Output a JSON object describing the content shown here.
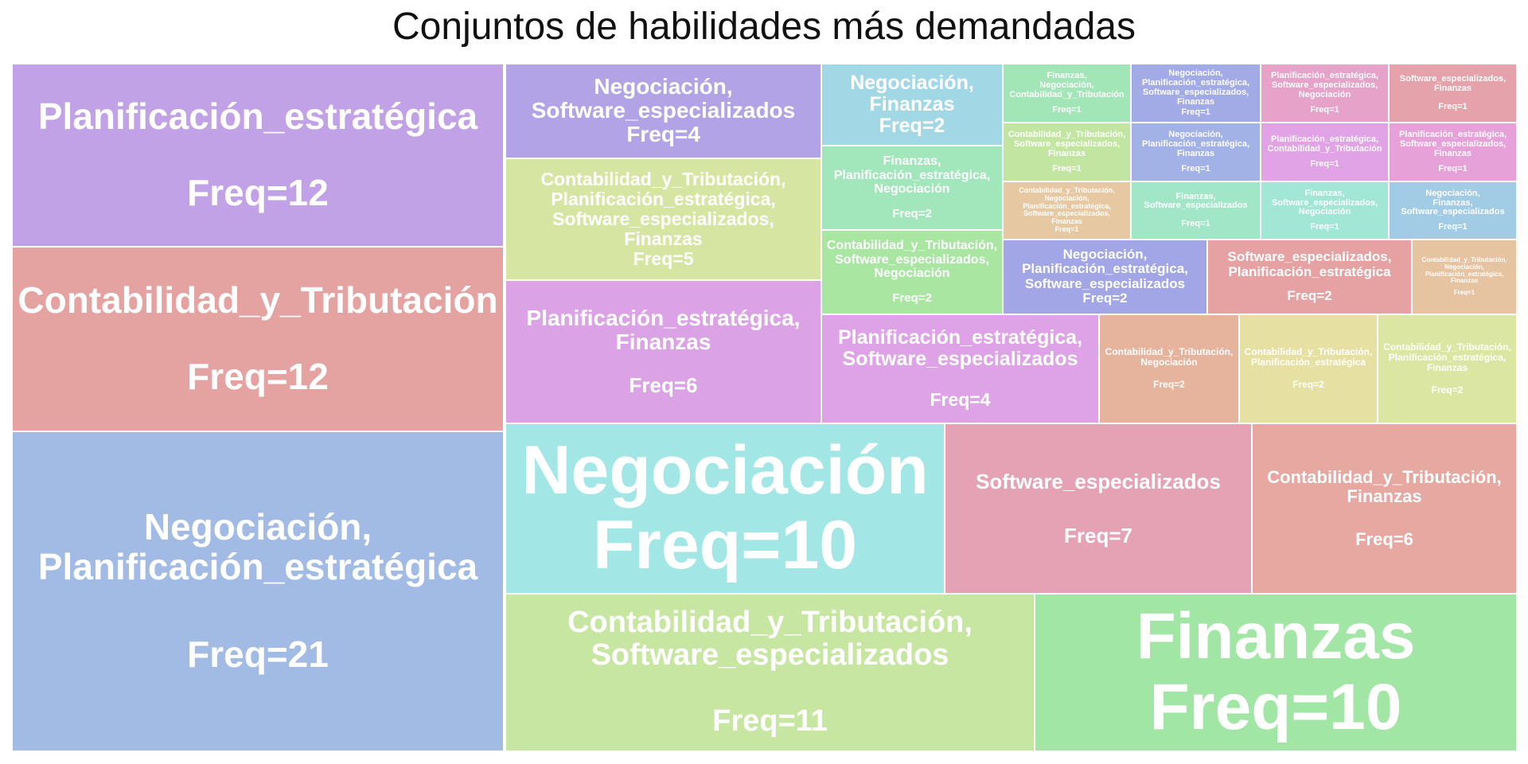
{
  "chart_data": {
    "type": "treemap",
    "title": "Conjuntos de habilidades más demandadas",
    "items": [
      {
        "label": "Negociación, Planificación_estratégica",
        "display": "Negociación,\nPlanificación_estratégica",
        "freq": 21,
        "freq_text": "Freq=21",
        "color": "#a1bbe4"
      },
      {
        "label": "Planificación_estratégica",
        "display": "Planificación_estratégica",
        "freq": 12,
        "freq_text": "Freq=12",
        "color": "#c1a2e6"
      },
      {
        "label": "Contabilidad_y_Tributación",
        "display": "Contabilidad_y_Tributación",
        "freq": 12,
        "freq_text": "Freq=12",
        "color": "#e4a2a0"
      },
      {
        "label": "Contabilidad_y_Tributación, Software_especializados",
        "display": "Contabilidad_y_Tributación,\nSoftware_especializados",
        "freq": 11,
        "freq_text": "Freq=11",
        "color": "#c7e6a2"
      },
      {
        "label": "Negociación",
        "display": "Negociación",
        "freq": 10,
        "freq_text": "Freq=10",
        "color": "#a2e6e6"
      },
      {
        "label": "Finanzas",
        "display": "Finanzas",
        "freq": 10,
        "freq_text": "Freq=10",
        "color": "#a2e6a5"
      },
      {
        "label": "Software_especializados",
        "display": "Software_especializados",
        "freq": 7,
        "freq_text": "Freq=7",
        "color": "#e4a2b4"
      },
      {
        "label": "Contabilidad_y_Tributación, Finanzas",
        "display": "Contabilidad_y_Tributación,\nFinanzas",
        "freq": 6,
        "freq_text": "Freq=6",
        "color": "#e6a8a0"
      },
      {
        "label": "Planificación_estratégica, Finanzas",
        "display": "Planificación_estratégica,\nFinanzas",
        "freq": 6,
        "freq_text": "Freq=6",
        "color": "#dba2e6"
      },
      {
        "label": "Contabilidad_y_Tributación, Planificación_estratégica, Software_especializados, Finanzas",
        "display": "Contabilidad_y_Tributación,\nPlanificación_estratégica,\nSoftware_especializados,\nFinanzas",
        "freq": 5,
        "freq_text": "Freq=5",
        "color": "#d6e6a2"
      },
      {
        "label": "Negociación, Software_especializados",
        "display": "Negociación,\nSoftware_especializados",
        "freq": 4,
        "freq_text": "Freq=4",
        "color": "#b2a2e6"
      },
      {
        "label": "Planificación_estratégica, Software_especializados",
        "display": "Planificación_estratégica,\nSoftware_especializados",
        "freq": 4,
        "freq_text": "Freq=4",
        "color": "#dea2e6"
      },
      {
        "label": "Negociación, Finanzas",
        "display": "Negociación,\nFinanzas",
        "freq": 2,
        "freq_text": "Freq=2",
        "color": "#a2d8e6"
      },
      {
        "label": "Finanzas, Planificación_estratégica, Negociación",
        "display": "Finanzas,\nPlanificación_estratégica,\nNegociación",
        "freq": 2,
        "freq_text": "Freq=2",
        "color": "#a2e6bb"
      },
      {
        "label": "Contabilidad_y_Tributación, Software_especializados, Negociación",
        "display": "Contabilidad_y_Tributación,\nSoftware_especializados,\nNegociación",
        "freq": 2,
        "freq_text": "Freq=2",
        "color": "#a8e6a2"
      },
      {
        "label": "Negociación, Planificación_estratégica, Software_especializados",
        "display": "Negociación,\nPlanificación_estratégica,\nSoftware_especializados",
        "freq": 2,
        "freq_text": "Freq=2",
        "color": "#a2a6e6"
      },
      {
        "label": "Software_especializados, Planificación_estratégica",
        "display": "Software_especializados,\nPlanificación_estratégica",
        "freq": 2,
        "freq_text": "Freq=2",
        "color": "#e6a2a2"
      },
      {
        "label": "Contabilidad_y_Tributación, Negociación",
        "display": "Contabilidad_y_Tributación,\nNegociación",
        "freq": 2,
        "freq_text": "Freq=2",
        "color": "#e6b49c"
      },
      {
        "label": "Contabilidad_y_Tributación, Planificación_estratégica",
        "display": "Contabilidad_y_Tributación,\nPlanificación_estratégica",
        "freq": 2,
        "freq_text": "Freq=2",
        "color": "#e6e0a2"
      },
      {
        "label": "Contabilidad_y_Tributación, Planificación_estratégica, Finanzas",
        "display": "Contabilidad_y_Tributación,\nPlanificación_estratégica,\nFinanzas",
        "freq": 2,
        "freq_text": "Freq=2",
        "color": "#dbe6a2"
      },
      {
        "label": "Finanzas, Negociación, Contabilidad_y_Tributación",
        "display": "Finanzas,\nNegociación,\nContabilidad_y_Tributación",
        "freq": 1,
        "freq_text": "Freq=1",
        "color": "#a2e6b8"
      },
      {
        "label": "Negociación, Planificación_estratégica, Software_especializados, Finanzas",
        "display": "Negociación,\nPlanificación_estratégica,\nSoftware_especializados,\nFinanzas",
        "freq": 1,
        "freq_text": "Freq=1",
        "color": "#a2abe6"
      },
      {
        "label": "Planificación_estratégica, Software_especializados, Negociación",
        "display": "Planificación_estratégica,\nSoftware_especializados,\nNegociación",
        "freq": 1,
        "freq_text": "Freq=1",
        "color": "#e6a2c8"
      },
      {
        "label": "Software_especializados, Finanzas",
        "display": "Software_especializados,\nFinanzas",
        "freq": 1,
        "freq_text": "Freq=1",
        "color": "#e6a2ab"
      },
      {
        "label": "Contabilidad_y_Tributación, Software_especializados, Finanzas",
        "display": "Contabilidad_y_Tributación,\nSoftware_especializados,\nFinanzas",
        "freq": 1,
        "freq_text": "Freq=1",
        "color": "#c2e6a2"
      },
      {
        "label": "Negociación, Planificación_estratégica, Finanzas",
        "display": "Negociación,\nPlanificación_estratégica,\nFinanzas",
        "freq": 1,
        "freq_text": "Freq=1",
        "color": "#a2b2e6"
      },
      {
        "label": "Planificación_estratégica, Contabilidad_y_Tributación",
        "display": "Planificación_estratégica,\nContabilidad_y_Tributación",
        "freq": 1,
        "freq_text": "Freq=1",
        "color": "#e2a2e6"
      },
      {
        "label": "Planificación_estratégica, Software_especializados, Finanzas",
        "display": "Planificación_estratégica,\nSoftware_especializados,\nFinanzas",
        "freq": 1,
        "freq_text": "Freq=1",
        "color": "#e6a2d8"
      },
      {
        "label": "Contabilidad_y_Tributación, Negociación, Planificación_estratégica, Software_especializados, Finanzas",
        "display": "Contabilidad_y_Tributación,\nNegociación,\nPlanificación_estratégica,\nSoftware_especializados,\nFinanzas",
        "freq": 1,
        "freq_text": "Freq=1",
        "color": "#e6c8a2"
      },
      {
        "label": "Finanzas, Software_especializados",
        "display": "Finanzas,\nSoftware_especializados",
        "freq": 1,
        "freq_text": "Freq=1",
        "color": "#a2e6c8"
      },
      {
        "label": "Finanzas, Software_especializados, Negociación",
        "display": "Finanzas,\nSoftware_especializados,\nNegociación",
        "freq": 1,
        "freq_text": "Freq=1",
        "color": "#a2e6d6"
      },
      {
        "label": "Negociación, Finanzas, Software_especializados",
        "display": "Negociación,\nFinanzas,\nSoftware_especializados",
        "freq": 1,
        "freq_text": "Freq=1",
        "color": "#a2cbe6"
      },
      {
        "label": "Contabilidad_y_Tributación, Negociación, Planificación_estratégica, Finanzas",
        "display": "Contabilidad_y_Tributación,\nNegociación,\nPlanificación_estratégica,\nFinanzas",
        "freq": 1,
        "freq_text": "Freq=1",
        "color": "#e6c4a2"
      }
    ]
  }
}
